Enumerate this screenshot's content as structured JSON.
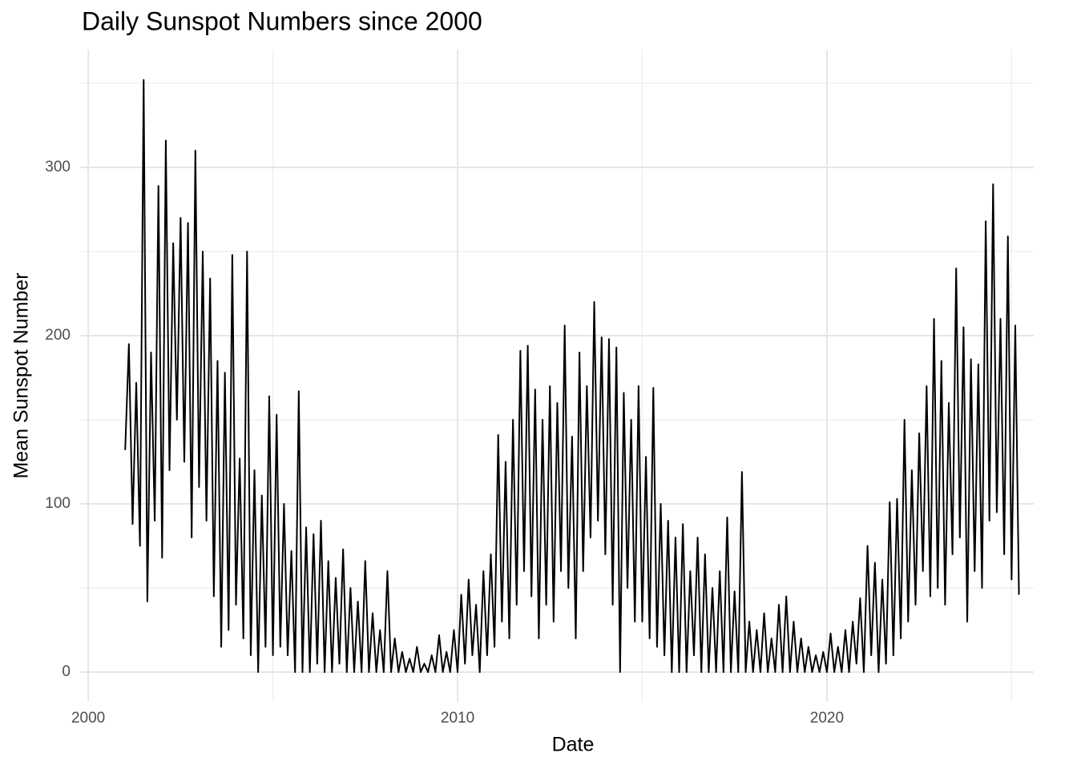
{
  "chart_data": {
    "type": "line",
    "title": "Daily Sunspot Numbers since 2000",
    "x_label": "Date",
    "y_label": "Mean Sunspot Number",
    "color": "#000000",
    "grid": true,
    "xlim": [
      1999.78,
      2025.6
    ],
    "xticks": [
      2000,
      2010,
      2020
    ],
    "ylim": [
      -17.6,
      370
    ],
    "yticks": [
      0,
      100,
      200,
      300
    ],
    "x": [
      2001,
      2001.1,
      2001.2,
      2001.3,
      2001.4,
      2001.5,
      2001.6,
      2001.7,
      2001.8,
      2001.9,
      2002,
      2002.1,
      2002.2,
      2002.3,
      2002.4,
      2002.5,
      2002.6,
      2002.7,
      2002.8,
      2002.9,
      2003,
      2003.1,
      2003.2,
      2003.3,
      2003.4,
      2003.5,
      2003.6,
      2003.7,
      2003.8,
      2003.9,
      2004,
      2004.1,
      2004.2,
      2004.3,
      2004.4,
      2004.5,
      2004.6,
      2004.7,
      2004.8,
      2004.9,
      2005,
      2005.1,
      2005.2,
      2005.3,
      2005.4,
      2005.5,
      2005.6,
      2005.7,
      2005.8,
      2005.9,
      2006,
      2006.1,
      2006.2,
      2006.3,
      2006.4,
      2006.5,
      2006.6,
      2006.7,
      2006.8,
      2006.9,
      2007,
      2007.1,
      2007.2,
      2007.3,
      2007.4,
      2007.5,
      2007.6,
      2007.7,
      2007.8,
      2007.9,
      2008,
      2008.1,
      2008.2,
      2008.3,
      2008.4,
      2008.5,
      2008.6,
      2008.7,
      2008.8,
      2008.9,
      2009,
      2009.1,
      2009.2,
      2009.3,
      2009.4,
      2009.5,
      2009.6,
      2009.7,
      2009.8,
      2009.9,
      2010,
      2010.1,
      2010.2,
      2010.3,
      2010.4,
      2010.5,
      2010.6,
      2010.7,
      2010.8,
      2010.9,
      2011,
      2011.1,
      2011.2,
      2011.3,
      2011.4,
      2011.5,
      2011.6,
      2011.7,
      2011.8,
      2011.9,
      2012,
      2012.1,
      2012.2,
      2012.3,
      2012.4,
      2012.5,
      2012.6,
      2012.7,
      2012.8,
      2012.9,
      2013,
      2013.1,
      2013.2,
      2013.3,
      2013.4,
      2013.5,
      2013.6,
      2013.7,
      2013.8,
      2013.9,
      2014,
      2014.1,
      2014.2,
      2014.3,
      2014.4,
      2014.5,
      2014.6,
      2014.7,
      2014.8,
      2014.9,
      2015,
      2015.1,
      2015.2,
      2015.3,
      2015.4,
      2015.5,
      2015.6,
      2015.7,
      2015.8,
      2015.9,
      2016,
      2016.1,
      2016.2,
      2016.3,
      2016.4,
      2016.5,
      2016.6,
      2016.7,
      2016.8,
      2016.9,
      2017,
      2017.1,
      2017.2,
      2017.3,
      2017.4,
      2017.5,
      2017.6,
      2017.7,
      2017.8,
      2017.9,
      2018,
      2018.1,
      2018.2,
      2018.3,
      2018.4,
      2018.5,
      2018.6,
      2018.7,
      2018.8,
      2018.9,
      2019,
      2019.1,
      2019.2,
      2019.3,
      2019.4,
      2019.5,
      2019.6,
      2019.7,
      2019.8,
      2019.9,
      2020,
      2020.1,
      2020.2,
      2020.3,
      2020.4,
      2020.5,
      2020.6,
      2020.7,
      2020.8,
      2020.9,
      2021,
      2021.1,
      2021.2,
      2021.3,
      2021.4,
      2021.5,
      2021.6,
      2021.7,
      2021.8,
      2021.9,
      2022,
      2022.1,
      2022.2,
      2022.3,
      2022.4,
      2022.5,
      2022.6,
      2022.7,
      2022.8,
      2022.9,
      2023,
      2023.1,
      2023.2,
      2023.3,
      2023.4,
      2023.5,
      2023.6,
      2023.7,
      2023.8,
      2023.9,
      2024,
      2024.1,
      2024.2,
      2024.3,
      2024.4,
      2024.5,
      2024.6,
      2024.7,
      2024.8,
      2024.9,
      2025,
      2025.1,
      2025.2
    ],
    "values": [
      132,
      195,
      88,
      172,
      75,
      352,
      42,
      190,
      90,
      289,
      68,
      316,
      120,
      255,
      150,
      270,
      125,
      267,
      80,
      310,
      110,
      250,
      90,
      234,
      45,
      185,
      15,
      178,
      25,
      248,
      40,
      127,
      20,
      250,
      10,
      120,
      0,
      105,
      15,
      164,
      10,
      153,
      15,
      100,
      10,
      72,
      0,
      167,
      0,
      86,
      0,
      82,
      5,
      90,
      0,
      66,
      0,
      56,
      5,
      73,
      0,
      50,
      0,
      42,
      0,
      66,
      0,
      35,
      0,
      25,
      0,
      60,
      0,
      20,
      0,
      12,
      0,
      8,
      0,
      15,
      0,
      5,
      0,
      10,
      0,
      22,
      0,
      12,
      0,
      25,
      0,
      46,
      5,
      55,
      10,
      40,
      0,
      60,
      10,
      70,
      15,
      141,
      30,
      125,
      20,
      150,
      40,
      191,
      60,
      194,
      45,
      168,
      20,
      150,
      40,
      170,
      30,
      160,
      60,
      206,
      50,
      140,
      20,
      190,
      60,
      170,
      80,
      220,
      90,
      199,
      70,
      198,
      40,
      193,
      0,
      166,
      50,
      150,
      30,
      170,
      30,
      128,
      20,
      169,
      15,
      100,
      10,
      90,
      0,
      80,
      0,
      88,
      0,
      60,
      10,
      80,
      0,
      70,
      0,
      50,
      0,
      60,
      0,
      92,
      0,
      48,
      0,
      119,
      0,
      30,
      0,
      25,
      0,
      35,
      0,
      20,
      0,
      40,
      0,
      45,
      0,
      30,
      0,
      20,
      0,
      15,
      0,
      10,
      0,
      12,
      0,
      23,
      0,
      15,
      0,
      25,
      0,
      30,
      5,
      44,
      0,
      75,
      10,
      65,
      0,
      55,
      5,
      101,
      10,
      103,
      20,
      150,
      30,
      120,
      40,
      142,
      60,
      170,
      45,
      210,
      50,
      185,
      40,
      160,
      70,
      240,
      80,
      205,
      30,
      186,
      60,
      183,
      50,
      268,
      90,
      290,
      95,
      210,
      70,
      259,
      55,
      206,
      46
    ]
  }
}
